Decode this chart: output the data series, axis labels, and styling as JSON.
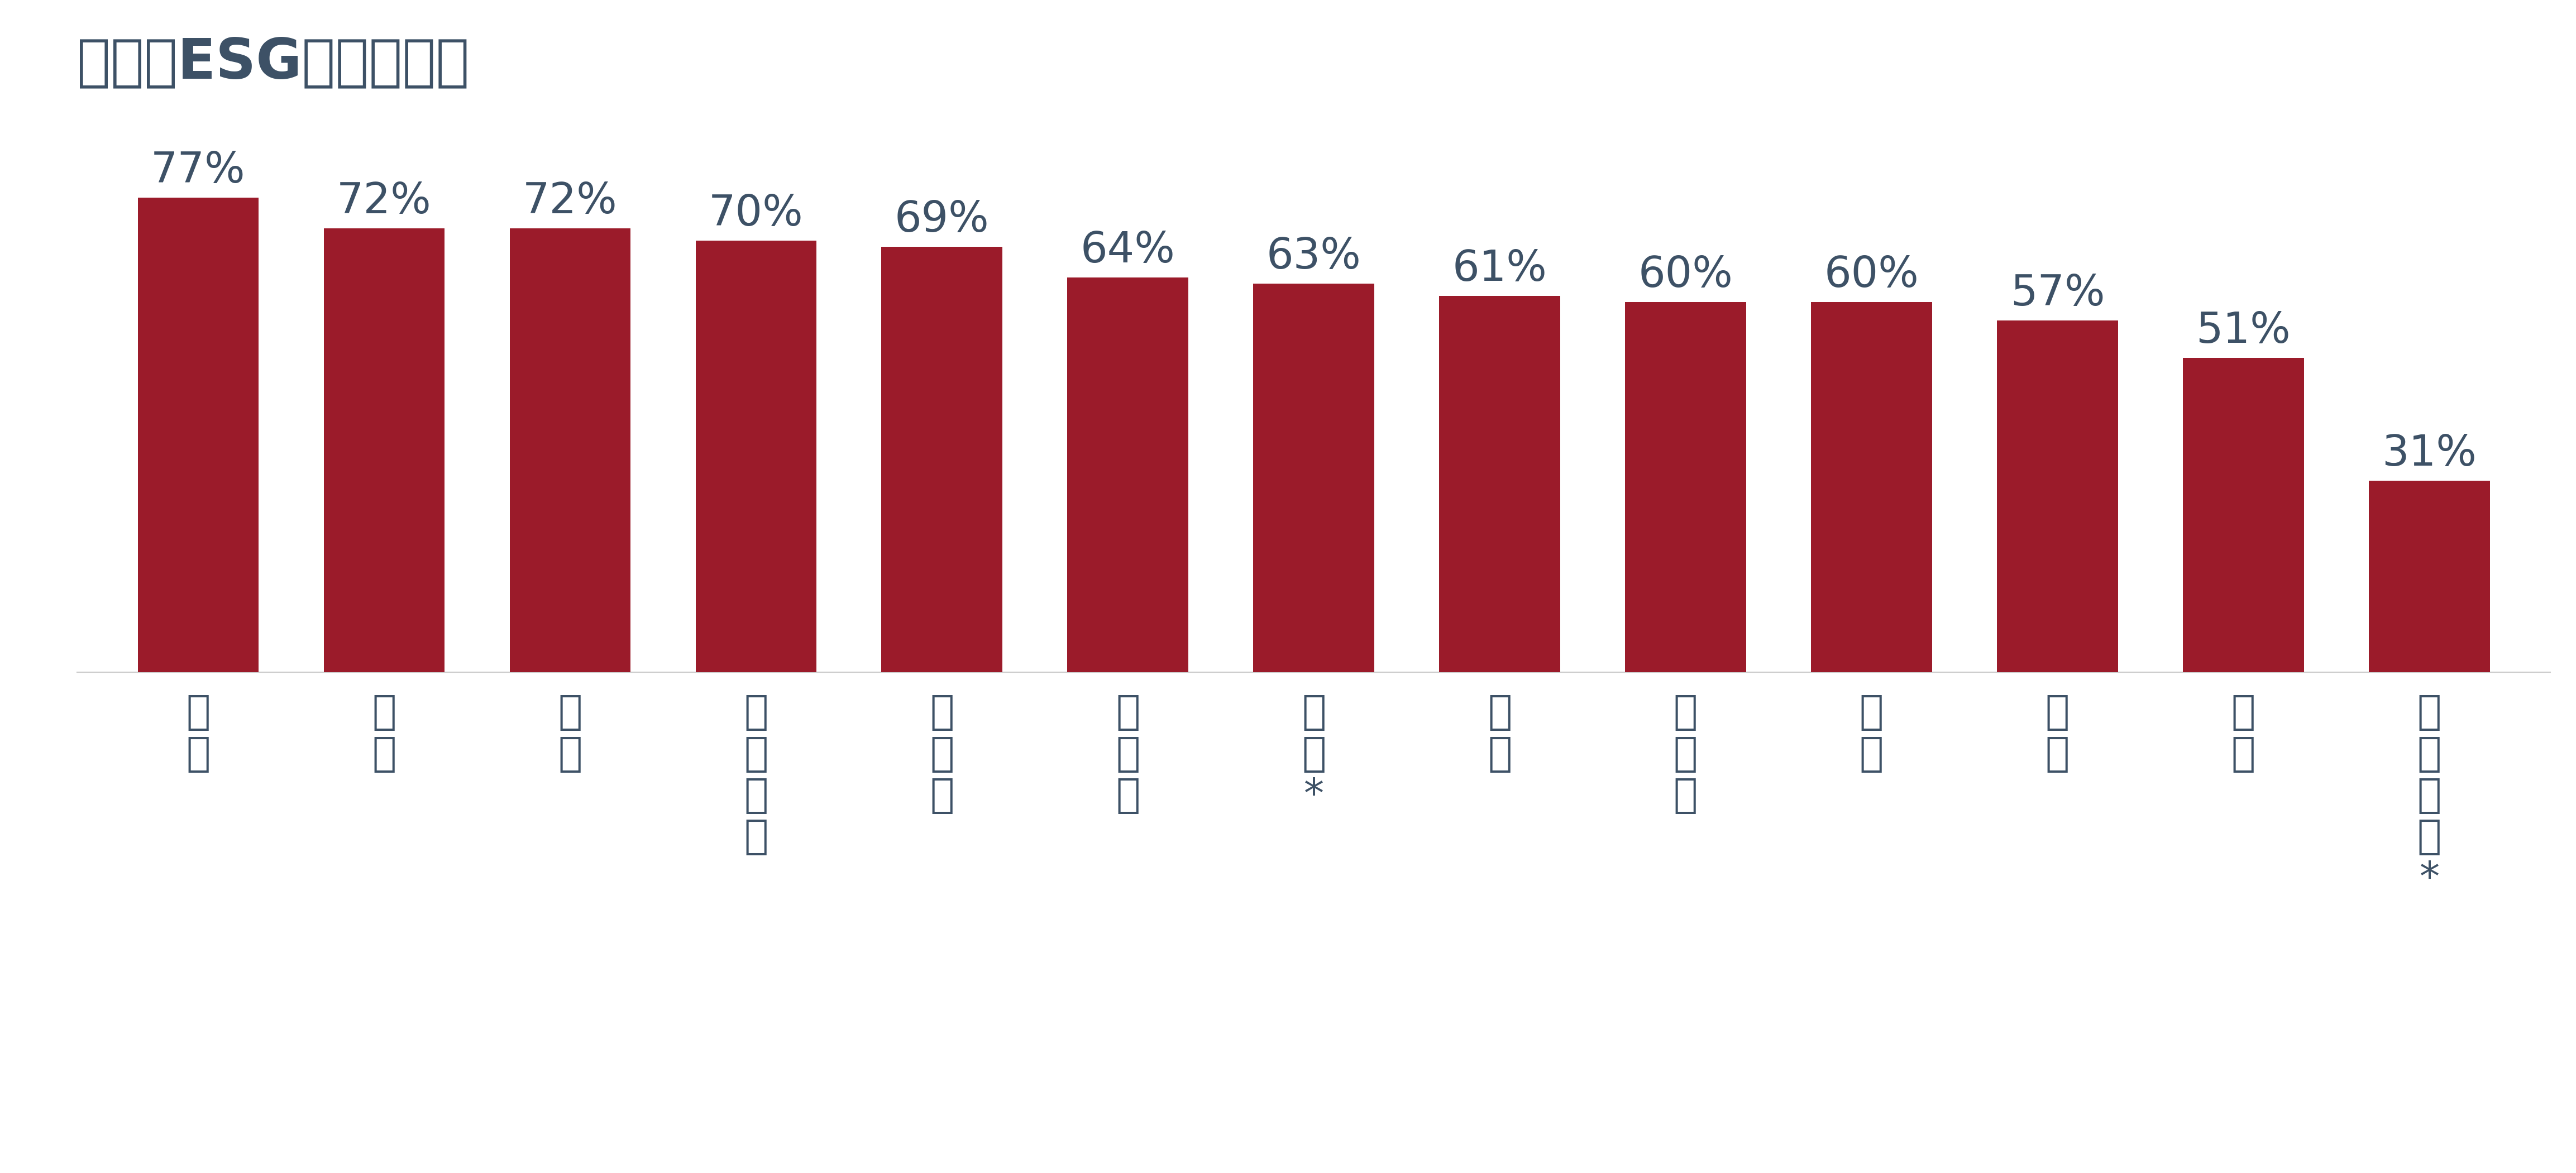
{
  "title": "亞太區ESG企業披露率",
  "categories": [
    "澳洲",
    "台灣",
    "泰國",
    "馬來西亞",
    "新加坡",
    "菲律賓",
    "香港*",
    "日本",
    "紐西蘭",
    "印尼",
    "印度",
    "韓國",
    "中國內地*"
  ],
  "values": [
    77,
    72,
    72,
    70,
    69,
    64,
    63,
    61,
    60,
    60,
    57,
    51,
    31
  ],
  "bar_color": "#9B1B2A",
  "label_color": "#3D5166",
  "title_color": "#3D5166",
  "background_color": "#FFFFFF",
  "bar_labels": [
    "77%",
    "72%",
    "72%",
    "70%",
    "69%",
    "64%",
    "63%",
    "61%",
    "60%",
    "60%",
    "57%",
    "51%",
    "31%"
  ],
  "ylim": [
    0,
    90
  ],
  "title_fontsize": 72,
  "label_fontsize": 55,
  "tick_fontsize": 52
}
